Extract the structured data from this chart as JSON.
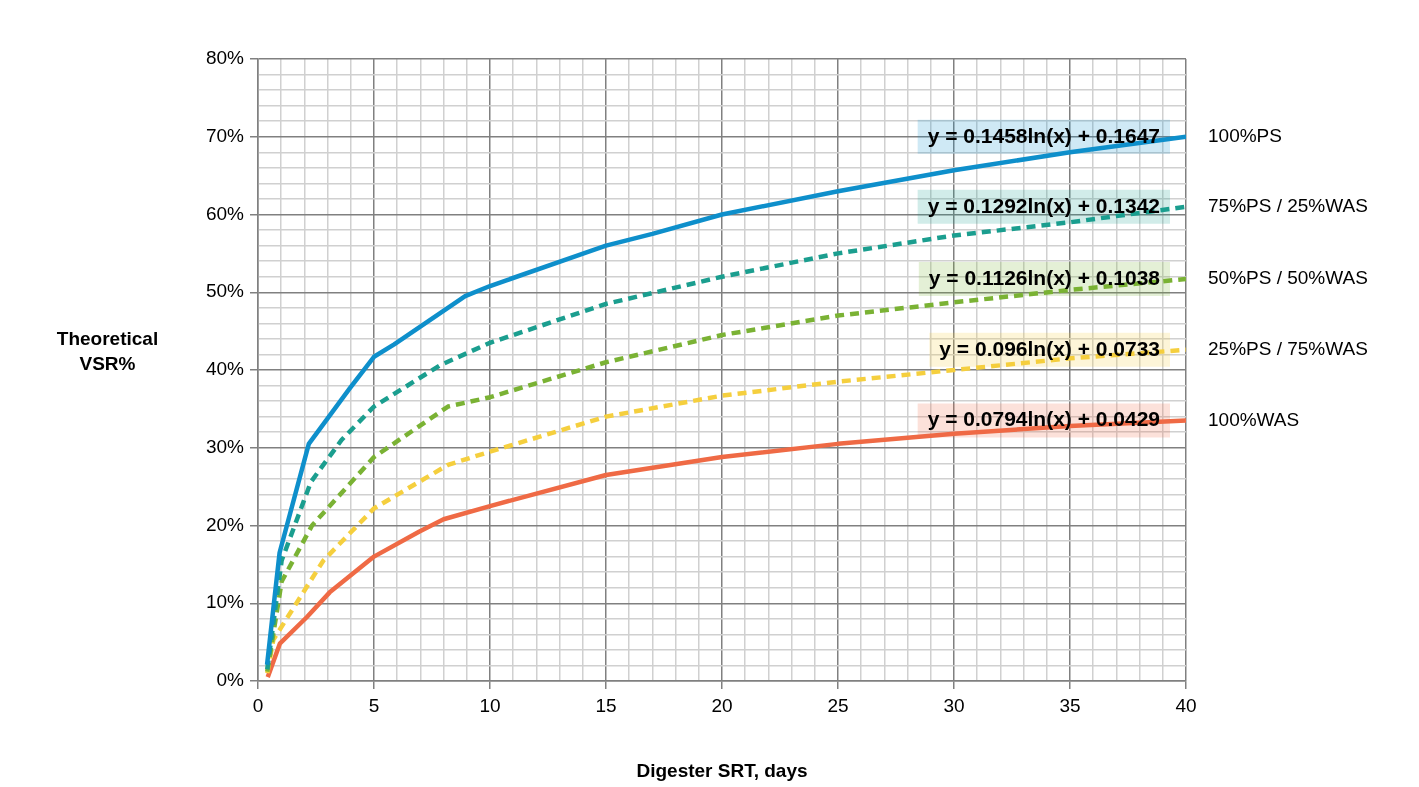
{
  "chart_data": {
    "type": "line",
    "xlabel": "Digester SRT, days",
    "ylabel": "Theoretical VSR%",
    "xlim": [
      0,
      40
    ],
    "xticks": [
      0,
      {
        "value": 1,
        "label": null
      },
      {
        "value": 2,
        "label": null
      },
      {
        "value": 3,
        "label": null
      },
      {
        "value": 4,
        "label": null
      },
      5,
      {
        "value": 6,
        "label": null
      },
      {
        "value": 7,
        "label": null
      },
      {
        "value": 8,
        "label": null
      },
      {
        "value": 9,
        "label": null
      },
      10,
      {
        "value": 11,
        "label": null
      },
      {
        "value": 12,
        "label": null
      },
      {
        "value": 13,
        "label": null
      },
      {
        "value": 14,
        "label": null
      },
      15,
      {
        "value": 16,
        "label": null
      },
      {
        "value": 17,
        "label": null
      },
      {
        "value": 18,
        "label": null
      },
      {
        "value": 19,
        "label": null
      },
      20,
      {
        "value": 21,
        "label": null
      },
      {
        "value": 22,
        "label": null
      },
      {
        "value": 23,
        "label": null
      },
      {
        "value": 24,
        "label": null
      },
      25,
      {
        "value": 26,
        "label": null
      },
      {
        "value": 27,
        "label": null
      },
      {
        "value": 28,
        "label": null
      },
      {
        "value": 29,
        "label": null
      },
      30,
      {
        "value": 31,
        "label": null
      },
      {
        "value": 32,
        "label": null
      },
      {
        "value": 33,
        "label": null
      },
      {
        "value": 34,
        "label": null
      },
      35,
      {
        "value": 36,
        "label": null
      },
      {
        "value": 37,
        "label": null
      },
      {
        "value": 38,
        "label": null
      },
      {
        "value": 39,
        "label": null
      },
      40
    ],
    "ylim": [
      0,
      0.8
    ],
    "yticks": [
      {
        "value": 0,
        "label": "0%"
      },
      {
        "value": 0.02,
        "label": null
      },
      {
        "value": 0.04,
        "label": null
      },
      {
        "value": 0.06,
        "label": null
      },
      {
        "value": 0.08,
        "label": null
      },
      {
        "value": 0.1,
        "label": "10%"
      },
      {
        "value": 0.12,
        "label": null
      },
      {
        "value": 0.14,
        "label": null
      },
      {
        "value": 0.16,
        "label": null
      },
      {
        "value": 0.18,
        "label": null
      },
      {
        "value": 0.2,
        "label": "20%"
      },
      {
        "value": 0.22,
        "label": null
      },
      {
        "value": 0.24,
        "label": null
      },
      {
        "value": 0.26,
        "label": null
      },
      {
        "value": 0.28,
        "label": null
      },
      {
        "value": 0.3,
        "label": "30%"
      },
      {
        "value": 0.32,
        "label": null
      },
      {
        "value": 0.34,
        "label": null
      },
      {
        "value": 0.36,
        "label": null
      },
      {
        "value": 0.38,
        "label": null
      },
      {
        "value": 0.4,
        "label": "40%"
      },
      {
        "value": 0.42,
        "label": null
      },
      {
        "value": 0.44,
        "label": null
      },
      {
        "value": 0.46,
        "label": null
      },
      {
        "value": 0.48,
        "label": null
      },
      {
        "value": 0.5,
        "label": "50%"
      },
      {
        "value": 0.52,
        "label": null
      },
      {
        "value": 0.54,
        "label": null
      },
      {
        "value": 0.56,
        "label": null
      },
      {
        "value": 0.58,
        "label": null
      },
      {
        "value": 0.6,
        "label": "60%"
      },
      {
        "value": 0.62,
        "label": null
      },
      {
        "value": 0.64,
        "label": null
      },
      {
        "value": 0.66,
        "label": null
      },
      {
        "value": 0.68,
        "label": null
      },
      {
        "value": 0.7,
        "label": "70%"
      },
      {
        "value": 0.72,
        "label": null
      },
      {
        "value": 0.74,
        "label": null
      },
      {
        "value": 0.76,
        "label": null
      },
      {
        "value": 0.78,
        "label": null
      },
      {
        "value": 0.8,
        "label": "80%"
      }
    ],
    "grid": true,
    "legend": false,
    "marker": "none",
    "series": [
      {
        "name": "100%PS",
        "color": "#0e8fcb",
        "line_style": "solid",
        "x": [
          0.39,
          0.93,
          2.19,
          3.97,
          5,
          5.87,
          8.93,
          10,
          15,
          17,
          20,
          25,
          30,
          35,
          40
        ],
        "values": [
          0.021,
          0.165,
          0.305,
          0.377,
          0.417,
          0.433,
          0.495,
          0.508,
          0.56,
          0.575,
          0.6,
          0.63,
          0.657,
          0.68,
          0.7
        ]
      },
      {
        "name": "75%PS / 25%WAS",
        "color": "#1b9e8f",
        "line_style": "dashed",
        "x": [
          0.4,
          1.02,
          2.28,
          3.6,
          5,
          7.84,
          10,
          15,
          20,
          25,
          30,
          35,
          40
        ],
        "values": [
          0.015,
          0.155,
          0.256,
          0.31,
          0.353,
          0.406,
          0.435,
          0.485,
          0.52,
          0.55,
          0.573,
          0.59,
          0.61
        ]
      },
      {
        "name": "50%PS / 50%WAS",
        "color": "#7ab234",
        "line_style": "dashed",
        "x": [
          0.4,
          1.02,
          2.33,
          5,
          8.19,
          10,
          15,
          20,
          25,
          30,
          35,
          40
        ],
        "values": [
          0.012,
          0.128,
          0.2,
          0.288,
          0.353,
          0.365,
          0.41,
          0.445,
          0.47,
          0.487,
          0.503,
          0.517
        ]
      },
      {
        "name": "25%PS / 75%WAS",
        "color": "#f5cf3e",
        "line_style": "dashed",
        "x": [
          0.4,
          0.66,
          2.82,
          5,
          8.19,
          10,
          15,
          20,
          25,
          30,
          35,
          40
        ],
        "values": [
          0.01,
          0.053,
          0.155,
          0.222,
          0.278,
          0.295,
          0.34,
          0.367,
          0.385,
          0.4,
          0.415,
          0.426
        ]
      },
      {
        "name": "100%WAS",
        "color": "#ef6a45",
        "line_style": "solid",
        "x": [
          0.42,
          0.94,
          2.1,
          3.09,
          5,
          6.94,
          8,
          10,
          15,
          20,
          25,
          30,
          35,
          40
        ],
        "values": [
          0.005,
          0.048,
          0.082,
          0.114,
          0.16,
          0.192,
          0.208,
          0.225,
          0.265,
          0.288,
          0.305,
          0.318,
          0.328,
          0.335
        ]
      }
    ],
    "annotations": [
      "y = 0.1458ln(x) + 0.1647",
      "y = 0.1292ln(x) + 0.1342",
      "y = 0.1126ln(x) + 0.1038",
      "y = 0.096ln(x) + 0.0733",
      "y = 0.0794ln(x) + 0.0429"
    ]
  }
}
